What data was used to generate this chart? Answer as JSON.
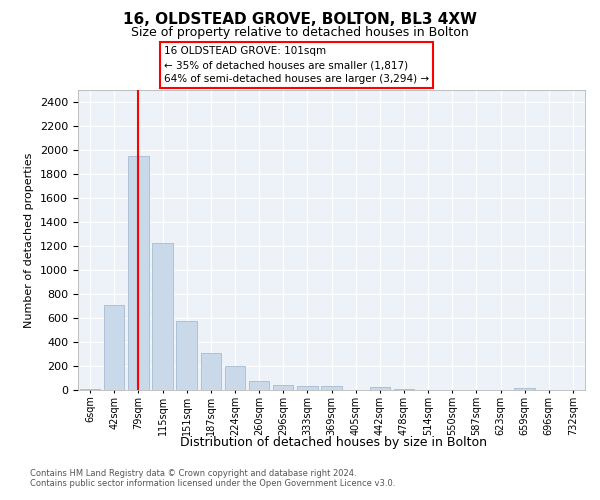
{
  "title": "16, OLDSTEAD GROVE, BOLTON, BL3 4XW",
  "subtitle": "Size of property relative to detached houses in Bolton",
  "xlabel": "Distribution of detached houses by size in Bolton",
  "ylabel": "Number of detached properties",
  "bar_color": "#c9d9ea",
  "bar_edge_color": "#9ab4cc",
  "vline_color": "red",
  "vline_x": 2,
  "annotation_text": "16 OLDSTEAD GROVE: 101sqm\n← 35% of detached houses are smaller (1,817)\n64% of semi-detached houses are larger (3,294) →",
  "footer1": "Contains HM Land Registry data © Crown copyright and database right 2024.",
  "footer2": "Contains public sector information licensed under the Open Government Licence v3.0.",
  "categories": [
    "6sqm",
    "42sqm",
    "79sqm",
    "115sqm",
    "151sqm",
    "187sqm",
    "224sqm",
    "260sqm",
    "296sqm",
    "333sqm",
    "369sqm",
    "405sqm",
    "442sqm",
    "478sqm",
    "514sqm",
    "550sqm",
    "587sqm",
    "623sqm",
    "659sqm",
    "696sqm",
    "732sqm"
  ],
  "values": [
    10,
    710,
    1950,
    1225,
    575,
    305,
    200,
    75,
    40,
    30,
    30,
    0,
    28,
    5,
    0,
    0,
    0,
    0,
    15,
    0,
    0
  ],
  "ylim": [
    0,
    2500
  ],
  "yticks": [
    0,
    200,
    400,
    600,
    800,
    1000,
    1200,
    1400,
    1600,
    1800,
    2000,
    2200,
    2400
  ],
  "bg_color": "#edf2f8"
}
